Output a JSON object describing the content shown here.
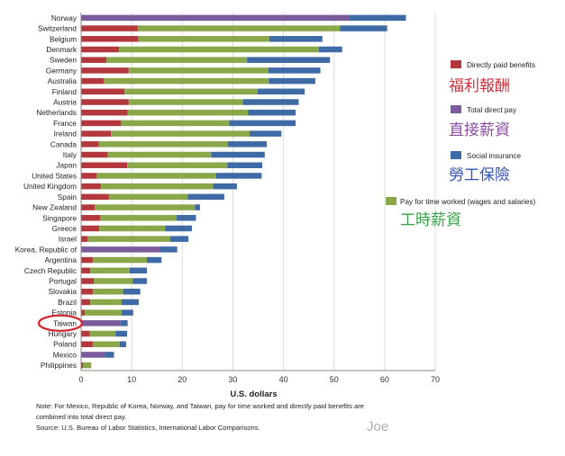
{
  "chart_data": {
    "type": "bar",
    "orientation": "horizontal",
    "stacked": true,
    "xlabel": "U.S. dollars",
    "xlim": [
      0,
      70
    ],
    "xticks": [
      0,
      10,
      20,
      30,
      40,
      50,
      60,
      70
    ],
    "grid": true,
    "highlight": "Taiwan",
    "categories": [
      "Norway",
      "Switzerland",
      "Belgium",
      "Denmark",
      "Sweden",
      "Germany",
      "Australia",
      "Finland",
      "Austria",
      "Netherlands",
      "France",
      "Ireland",
      "Canada",
      "Italy",
      "Japan",
      "United States",
      "United Kingdom",
      "Spain",
      "New Zealand",
      "Singapore",
      "Greece",
      "Israel",
      "Korea, Republic of",
      "Argentina",
      "Czech Republic",
      "Portugal",
      "Slovakia",
      "Brazil",
      "Estonia",
      "Taiwan",
      "Hungary",
      "Poland",
      "Mexico",
      "Philippines"
    ],
    "series": [
      {
        "name": "Directly paid benefits",
        "color": "#b2383d",
        "values": [
          0,
          11.2,
          11.3,
          7.5,
          5,
          9.4,
          4.5,
          8.6,
          9.4,
          9.2,
          7.9,
          5.9,
          3.5,
          5.3,
          9.1,
          3.1,
          3.9,
          5.5,
          2.7,
          3.8,
          3.6,
          1.3,
          0,
          2.3,
          1.8,
          2.5,
          2.3,
          1.8,
          0.7,
          0,
          1.7,
          2.3,
          0,
          0.4
        ]
      },
      {
        "name": "Total direct pay",
        "color": "#7b5b9b",
        "values": [
          53,
          0,
          0,
          0,
          0,
          0,
          0,
          0,
          0,
          0,
          0,
          0,
          0,
          0,
          0,
          0,
          0,
          0,
          0,
          0,
          0,
          0,
          15.5,
          0,
          0,
          0,
          0,
          0,
          0,
          7.8,
          0,
          0,
          4.7,
          0
        ]
      },
      {
        "name": "Pay for time worked (wages and salaries)",
        "color": "#8aa84a",
        "values": [
          0,
          40,
          25.9,
          39.5,
          27.8,
          27.6,
          32.6,
          26.3,
          22.6,
          23.8,
          21.4,
          27.4,
          25.5,
          20.4,
          19.8,
          23.6,
          22.2,
          15.6,
          19.8,
          15.1,
          13,
          16.3,
          0,
          10.7,
          7.8,
          7.7,
          6,
          6.2,
          7.3,
          0,
          5.1,
          5.3,
          0,
          1.6
        ]
      },
      {
        "name": "Social insurance",
        "color": "#3e6aa6",
        "values": [
          11.2,
          9.3,
          10.5,
          4.6,
          16.4,
          10.3,
          9.2,
          9.3,
          11,
          9.4,
          13.1,
          6.3,
          7.7,
          10.6,
          6.9,
          9,
          4.7,
          7.2,
          1,
          3.8,
          5.3,
          3.6,
          3.5,
          2.9,
          3.4,
          2.8,
          3.4,
          3.4,
          2.3,
          1.4,
          2.3,
          1.3,
          1.8,
          0
        ]
      }
    ]
  },
  "legend": [
    {
      "label": "Directly paid benefits",
      "zh": "福利報酬",
      "color": "#b2383d",
      "zh_color": "#d0303a"
    },
    {
      "label": "Total direct pay",
      "zh": "直接薪資",
      "color": "#7b5b9b",
      "zh_color": "#8c4ca4"
    },
    {
      "label": "Social insurance",
      "zh": "勞工保險",
      "color": "#3e6aa6",
      "zh_color": "#3556b8"
    },
    {
      "label": "Pay for time worked (wages and salaries)",
      "zh": "工時薪資",
      "color": "#8aa84a",
      "zh_color": "#3aa04a"
    }
  ],
  "notes": {
    "line1": "Note: For Mexico, Republic of Korea, Norway, and Taiwan, pay for time worked and directly paid benefits are",
    "line2": "combined into total direct pay.",
    "source": "Source: U.S. Bureau of Labor Statistics, International Labor Comparisons."
  },
  "signature": "Joe"
}
